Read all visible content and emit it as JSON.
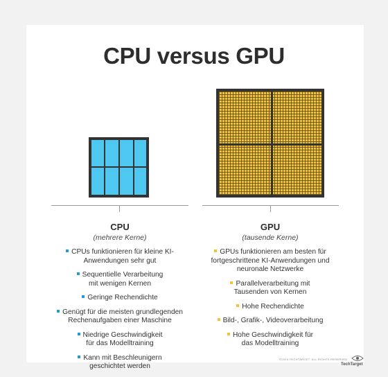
{
  "title": "CPU versus GPU",
  "cpu": {
    "name": "CPU",
    "subtitle": "(mehrere Kerne)",
    "items": [
      "CPUs funktionieren für kleine KI-\nAnwendungen sehr gut",
      "Sequentielle Verarbeitung\nmit wenigen Kernen",
      "Geringe Rechendichte",
      "Genügt für die meisten grundlegenden\nRechenaufgaben einer Maschine",
      "Niedrige Geschwindigkeit\nfür das Modelltraining",
      "Kann mit Beschleunigern\ngeschichtet werden"
    ]
  },
  "gpu": {
    "name": "GPU",
    "subtitle": "(tausende Kerne)",
    "items": [
      "GPUs funktionieren am besten für\nfortgeschrittene KI-Anwendungen und\nneuronale Netzwerke",
      "Parallelverarbeitung mit\nTausenden von Kernen",
      "Hohe Rechendichte",
      "Bild-, Grafik-, Videoverarbeitung",
      "Hohe Geschwindigkeit für\ndas Modelltraining"
    ]
  },
  "footer": {
    "copyright": "©2024 TECHTARGET. ALL RIGHTS RESERVED",
    "brand": "TechTarget"
  },
  "colors": {
    "cpu_core": "#4ec7f1",
    "gpu_core": "#f2c433",
    "chip_border": "#333333"
  }
}
